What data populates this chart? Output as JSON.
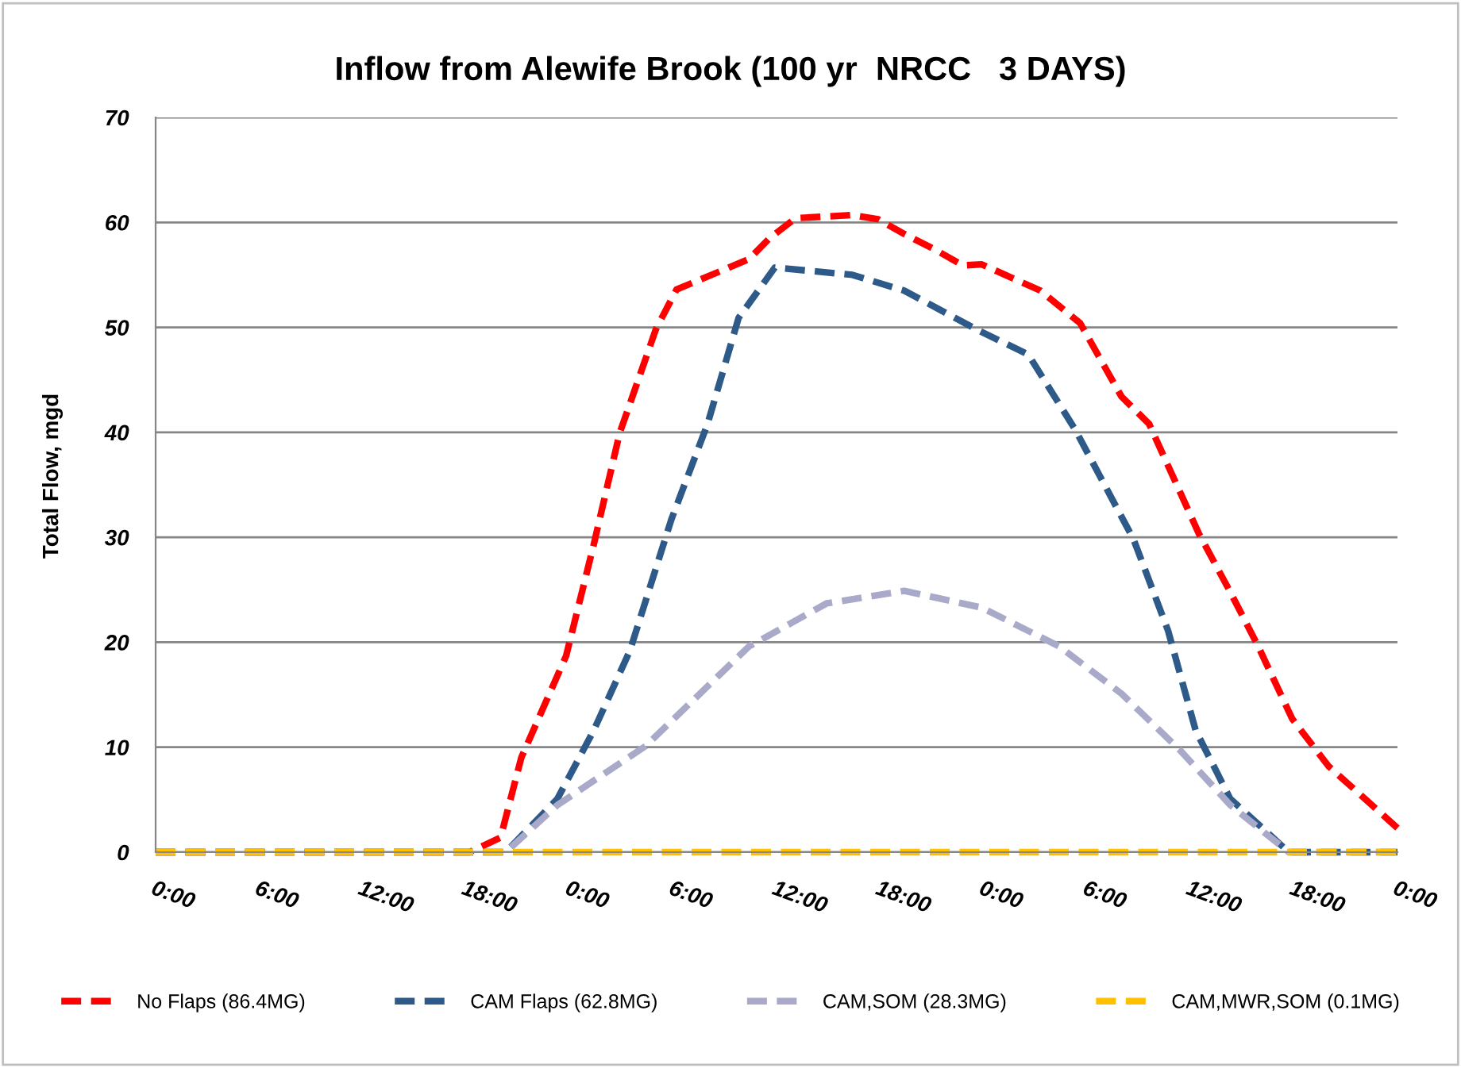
{
  "chart_data": {
    "type": "line",
    "title": "Inflow from Alewife Brook (100 yr  NRCC   3 DAYS)",
    "ylabel": "Total Flow, mgd",
    "xlim": [
      "2000-01-01T00:00",
      "2000-01-04T00:00"
    ],
    "ylim": [
      0,
      70
    ],
    "yticks": [
      0,
      10,
      20,
      30,
      40,
      50,
      60,
      70
    ],
    "xticks": [
      {
        "value": "2000-01-01T00:00",
        "label": "0:00"
      },
      {
        "value": "2000-01-01T06:00",
        "label": "6:00"
      },
      {
        "value": "2000-01-01T12:00",
        "label": "12:00"
      },
      {
        "value": "2000-01-01T18:00",
        "label": "18:00"
      },
      {
        "value": "2000-01-02T00:00",
        "label": "0:00"
      },
      {
        "value": "2000-01-02T06:00",
        "label": "6:00"
      },
      {
        "value": "2000-01-02T12:00",
        "label": "12:00"
      },
      {
        "value": "2000-01-02T18:00",
        "label": "18:00"
      },
      {
        "value": "2000-01-03T00:00",
        "label": "0:00"
      },
      {
        "value": "2000-01-03T06:00",
        "label": "6:00"
      },
      {
        "value": "2000-01-03T12:00",
        "label": "12:00"
      },
      {
        "value": "2000-01-03T18:00",
        "label": "18:00"
      },
      {
        "value": "2000-01-04T00:00",
        "label": "0:00"
      }
    ],
    "grid": "y",
    "legend": "bottom",
    "line_style": "dashed",
    "marker": "none",
    "series": [
      {
        "name": "No Flaps (86.4MG)",
        "color": "#ff0000",
        "x": [
          "2000-01-01T00:00",
          "2000-01-01T18:12",
          "2000-01-01T20:00",
          "2000-01-01T21:12",
          "2000-01-01T23:48",
          "2000-01-02T01:24",
          "2000-01-02T02:54",
          "2000-01-02T05:00",
          "2000-01-02T06:12",
          "2000-01-02T10:24",
          "2000-01-02T11:36",
          "2000-01-02T13:06",
          "2000-01-02T16:24",
          "2000-01-02T17:54",
          "2000-01-02T19:24",
          "2000-01-02T21:12",
          "2000-01-02T22:48",
          "2000-01-02T23:54",
          "2000-01-03T03:18",
          "2000-01-03T05:36",
          "2000-01-03T08:00",
          "2000-01-03T09:36",
          "2000-01-03T12:30",
          "2000-01-03T14:18",
          "2000-01-03T15:54",
          "2000-01-03T17:54",
          "2000-01-03T20:00",
          "2000-01-04T00:00"
        ],
        "values": [
          0,
          0,
          1.4,
          9,
          18.7,
          29.3,
          39.9,
          49.8,
          53.6,
          56.5,
          58.5,
          60.4,
          60.7,
          60.3,
          58.9,
          57.4,
          55.9,
          56,
          53.5,
          50.4,
          43.4,
          40.8,
          30.3,
          24.8,
          19.7,
          12.7,
          8.2,
          2.3
        ]
      },
      {
        "name": "CAM Flaps (62.8MG)",
        "color": "#2e5a8a",
        "x": [
          "2000-01-01T00:00",
          "2000-01-01T20:18",
          "2000-01-01T23:18",
          "2000-01-02T01:24",
          "2000-01-02T03:30",
          "2000-01-02T05:54",
          "2000-01-02T08:00",
          "2000-01-02T09:48",
          "2000-01-02T11:54",
          "2000-01-02T16:24",
          "2000-01-02T19:24",
          "2000-01-02T23:36",
          "2000-01-03T02:36",
          "2000-01-03T05:18",
          "2000-01-03T08:42",
          "2000-01-03T10:42",
          "2000-01-03T12:18",
          "2000-01-03T14:18",
          "2000-01-03T17:42",
          "2000-01-04T00:00"
        ],
        "values": [
          0,
          0,
          5.1,
          11.6,
          19.2,
          31.7,
          40.8,
          50.9,
          55.7,
          55,
          53.5,
          49.8,
          47.4,
          40.3,
          29.8,
          21.1,
          11.6,
          5.1,
          0,
          0
        ]
      },
      {
        "name": "CAM,SOM (28.3MG)",
        "color": "#a9a9c9",
        "x": [
          "2000-01-01T00:00",
          "2000-01-01T20:18",
          "2000-01-01T23:18",
          "2000-01-02T04:24",
          "2000-01-02T10:24",
          "2000-01-02T14:54",
          "2000-01-02T19:24",
          "2000-01-02T23:54",
          "2000-01-03T04:24",
          "2000-01-03T08:00",
          "2000-01-03T11:24",
          "2000-01-03T14:18",
          "2000-01-03T17:42",
          "2000-01-04T00:00"
        ],
        "values": [
          0,
          0,
          4.5,
          10.1,
          19.6,
          23.7,
          24.9,
          23.3,
          19.6,
          15.1,
          9.7,
          4.5,
          0,
          0
        ]
      },
      {
        "name": "CAM,MWR,SOM (0.1MG)",
        "color": "#ffc000",
        "x": [
          "2000-01-01T00:00",
          "2000-01-04T00:00"
        ],
        "values": [
          0,
          0
        ]
      }
    ]
  }
}
